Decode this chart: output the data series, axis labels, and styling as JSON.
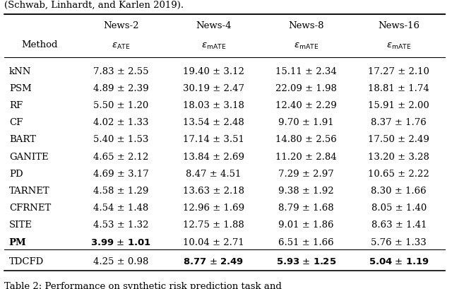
{
  "title_top": "(Schwab, Linhardt, and Karlen 2019).",
  "caption": "Table 2: Performance on synthetic risk prediction task and",
  "col_headers_top": [
    "News-2",
    "News-4",
    "News-8",
    "News-16"
  ],
  "col_headers_bottom": [
    "εₐₜₑ",
    "εₘₐₜ⁑",
    "εₘₐₜ⁑",
    "εₘₐₜ⁑"
  ],
  "col_headers_epsilon": [
    "ε_ATE",
    "ε_mATE",
    "ε_mATE",
    "ε_mATE"
  ],
  "methods": [
    "kNN",
    "PSM",
    "RF",
    "CF",
    "BART",
    "GANITE",
    "PD",
    "TARNET",
    "CFRNET",
    "SITE",
    "PM"
  ],
  "tdcfd_method": "TDCFD",
  "data": {
    "kNN": [
      "7.83 ± 2.55",
      "19.40 ± 3.12",
      "15.11 ± 2.34",
      "17.27 ± 2.10"
    ],
    "PSM": [
      "4.89 ± 2.39",
      "30.19 ± 2.47",
      "22.09 ± 1.98",
      "18.81 ± 1.74"
    ],
    "RF": [
      "5.50 ± 1.20",
      "18.03 ± 3.18",
      "12.40 ± 2.29",
      "15.91 ± 2.00"
    ],
    "CF": [
      "4.02 ± 1.33",
      "13.54 ± 2.48",
      "9.70 ± 1.91",
      "8.37 ± 1.76"
    ],
    "BART": [
      "5.40 ± 1.53",
      "17.14 ± 3.51",
      "14.80 ± 2.56",
      "17.50 ± 2.49"
    ],
    "GANITE": [
      "4.65 ± 2.12",
      "13.84 ± 2.69",
      "11.20 ± 2.84",
      "13.20 ± 3.28"
    ],
    "PD": [
      "4.69 ± 3.17",
      "8.47 ± 4.51",
      "7.29 ± 2.97",
      "10.65 ± 2.22"
    ],
    "TARNET": [
      "4.58 ± 1.29",
      "13.63 ± 2.18",
      "9.38 ± 1.92",
      "8.30 ± 1.66"
    ],
    "CFRNET": [
      "4.54 ± 1.48",
      "12.96 ± 1.69",
      "8.79 ± 1.68",
      "8.05 ± 1.40"
    ],
    "SITE": [
      "4.53 ± 1.32",
      "12.75 ± 1.88",
      "9.01 ± 1.86",
      "8.63 ± 1.41"
    ],
    "PM": [
      "3.99 ± 1.01",
      "10.04 ± 2.71",
      "6.51 ± 1.66",
      "5.76 ± 1.33"
    ],
    "TDCFD": [
      "4.25 ± 0.98",
      "8.77 ± 2.49",
      "5.93 ± 1.25",
      "5.04 ± 1.19"
    ]
  },
  "bold": {
    "PM": [
      true,
      false,
      false,
      false
    ],
    "TDCFD": [
      false,
      true,
      true,
      true
    ]
  },
  "bg_color": "#ffffff",
  "text_color": "#000000",
  "font_size": 9.5
}
